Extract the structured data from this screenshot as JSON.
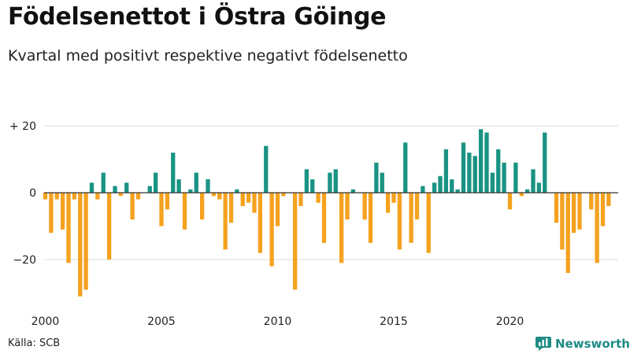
{
  "header": {
    "title": "Födelsenettot i Östra Göinge",
    "subtitle": "Kvartal med positivt respektive negativt födelsenetto"
  },
  "footer": {
    "source": "Källa: SCB",
    "brand": "Newsworthy"
  },
  "colors": {
    "positive": "#1a9384",
    "negative": "#f5a21f",
    "axis": "#333333",
    "grid": "#dddddd",
    "brand": "#1d8b84"
  },
  "chart_data": {
    "type": "bar",
    "title": "Födelsenettot i Östra Göinge",
    "subtitle": "Kvartal med positivt respektive negativt födelsenetto",
    "xlabel": "",
    "ylabel": "",
    "ylim": [
      -35,
      25
    ],
    "yticks": [
      {
        "value": 20,
        "label": "+ 20"
      },
      {
        "value": 0,
        "label": "0"
      },
      {
        "value": -20,
        "label": "−20"
      }
    ],
    "xticks": [
      {
        "value": 2000,
        "label": "2000"
      },
      {
        "value": 2005,
        "label": "2005"
      },
      {
        "value": 2010,
        "label": "2010"
      },
      {
        "value": 2015,
        "label": "2015"
      },
      {
        "value": 2020,
        "label": "2020"
      }
    ],
    "start_year": 2000,
    "quarters_per_year": 4,
    "values": [
      -2,
      -12,
      -2,
      -11,
      -21,
      -2,
      -31,
      -29,
      3,
      -2,
      6,
      -20,
      2,
      -1,
      3,
      -8,
      -2,
      0,
      2,
      6,
      -10,
      -5,
      12,
      4,
      -11,
      1,
      6,
      -8,
      4,
      -1,
      -2,
      -17,
      -9,
      1,
      -4,
      -3,
      -6,
      -18,
      14,
      -22,
      -10,
      -1,
      0,
      -29,
      -4,
      7,
      4,
      -3,
      -15,
      6,
      7,
      -21,
      -8,
      1,
      0,
      -8,
      -15,
      9,
      6,
      -6,
      -3,
      -17,
      15,
      -15,
      -8,
      2,
      -18,
      3,
      5,
      13,
      4,
      1,
      15,
      12,
      11,
      19,
      18,
      6,
      13,
      9,
      -5,
      9,
      -1,
      1,
      7,
      3,
      18,
      0,
      -9,
      -17,
      -24,
      -12,
      -11,
      0,
      -5,
      -21,
      -10,
      -4
    ]
  }
}
